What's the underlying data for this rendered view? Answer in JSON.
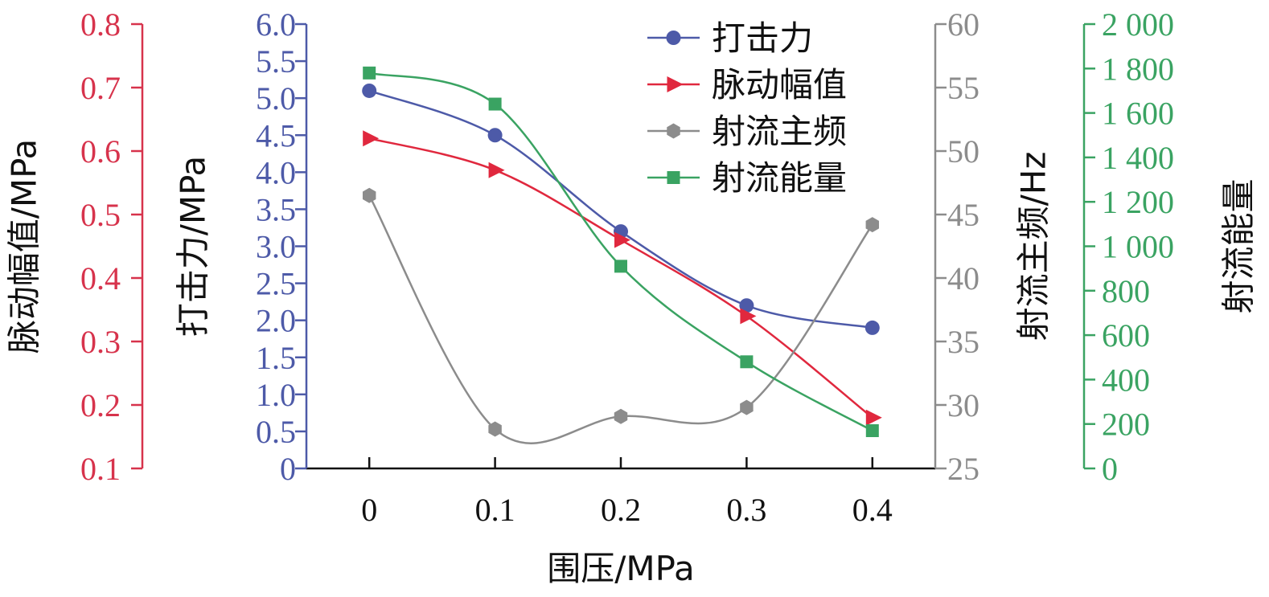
{
  "chart_data": {
    "type": "line",
    "categories": [
      "0",
      "0.1",
      "0.2",
      "0.3",
      "0.4"
    ],
    "x": [
      0,
      0.1,
      0.2,
      0.3,
      0.4
    ],
    "xlabel": "围压/MPa",
    "xlim": [
      -0.05,
      0.45
    ],
    "grid": false,
    "legend_position": "top-right",
    "axes": [
      {
        "id": "red",
        "ylabel": "脉动幅值/MPa",
        "ylim": [
          0.1,
          0.8
        ],
        "ticks": [
          "0.1",
          "0.2",
          "0.3",
          "0.4",
          "0.5",
          "0.6",
          "0.7",
          "0.8"
        ],
        "color": "#d7334c"
      },
      {
        "id": "blue",
        "ylabel": "打击力/MPa",
        "ylim": [
          0,
          6.0
        ],
        "ticks": [
          "0",
          "0.5",
          "1.0",
          "1.5",
          "2.0",
          "2.5",
          "3.0",
          "3.5",
          "4.0",
          "4.5",
          "5.0",
          "5.5",
          "6.0"
        ],
        "color": "#4d5aa8"
      },
      {
        "id": "gray",
        "ylabel": "射流主频/Hz",
        "ylim": [
          25,
          60
        ],
        "ticks": [
          "25",
          "30",
          "35",
          "40",
          "45",
          "50",
          "55",
          "60"
        ],
        "color": "#8c8c8c"
      },
      {
        "id": "green",
        "ylabel": "射流能量",
        "ylim": [
          0,
          2000
        ],
        "ticks": [
          "0",
          "200",
          "400",
          "600",
          "800",
          "1 000",
          "1 200",
          "1 400",
          "1 600",
          "1 800",
          "2 000"
        ],
        "color": "#3aa362"
      }
    ],
    "series": [
      {
        "name": "打击力",
        "axis": "blue",
        "marker": "circle",
        "color": "#4d5aa8",
        "values": [
          5.1,
          4.5,
          3.2,
          2.2,
          1.9
        ]
      },
      {
        "name": "脉动幅值",
        "axis": "red",
        "marker": "triangle",
        "color": "#e0283e",
        "values": [
          0.62,
          0.57,
          0.46,
          0.34,
          0.18
        ]
      },
      {
        "name": "射流主频",
        "axis": "gray",
        "marker": "hexagon",
        "color": "#8c8c8c",
        "values": [
          46.5,
          28.1,
          29.1,
          29.8,
          44.2
        ]
      },
      {
        "name": "射流能量",
        "axis": "green",
        "marker": "square",
        "color": "#3aa362",
        "values": [
          1780,
          1640,
          910,
          480,
          170
        ]
      }
    ]
  }
}
